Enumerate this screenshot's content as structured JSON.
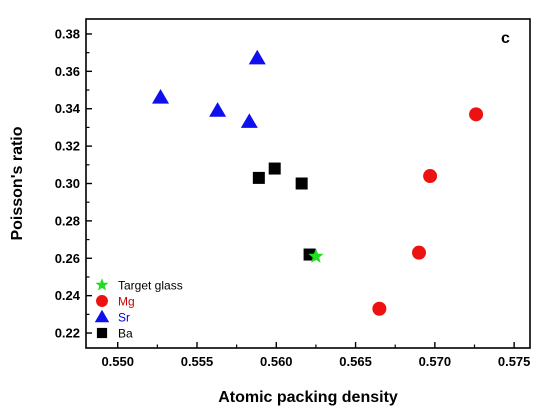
{
  "chart_data": {
    "type": "scatter",
    "panel_label": "c",
    "xlabel": "Atomic packing density",
    "ylabel": "Poisson's ratio",
    "xlim": [
      0.548,
      0.576
    ],
    "ylim": [
      0.212,
      0.388
    ],
    "x_ticks": [
      0.55,
      0.555,
      0.56,
      0.565,
      0.57,
      0.575
    ],
    "x_tick_labels": [
      "0.550",
      "0.555",
      "0.560",
      "0.565",
      "0.570",
      "0.575"
    ],
    "y_ticks": [
      0.22,
      0.24,
      0.26,
      0.28,
      0.3,
      0.32,
      0.34,
      0.36,
      0.38
    ],
    "y_tick_labels": [
      "0.22",
      "0.24",
      "0.26",
      "0.28",
      "0.30",
      "0.32",
      "0.34",
      "0.36",
      "0.38"
    ],
    "grid": false,
    "legend_position": "bottom-left",
    "series": [
      {
        "name": "Target glass",
        "marker": "star",
        "color": "#22dd22",
        "label_color": "#000000",
        "points": [
          [
            0.5625,
            0.261
          ]
        ]
      },
      {
        "name": "Mg",
        "marker": "circle",
        "color": "#ee1111",
        "label_color": "#cc0000",
        "points": [
          [
            0.5665,
            0.233
          ],
          [
            0.569,
            0.263
          ],
          [
            0.5697,
            0.304
          ],
          [
            0.5726,
            0.337
          ]
        ]
      },
      {
        "name": "Sr",
        "marker": "triangle",
        "color": "#1010ee",
        "label_color": "#0000cc",
        "points": [
          [
            0.5527,
            0.346
          ],
          [
            0.5563,
            0.339
          ],
          [
            0.5583,
            0.333
          ],
          [
            0.5588,
            0.367
          ]
        ]
      },
      {
        "name": "Ba",
        "marker": "square",
        "color": "#000000",
        "label_color": "#000000",
        "points": [
          [
            0.5589,
            0.303
          ],
          [
            0.5599,
            0.308
          ],
          [
            0.5616,
            0.3
          ],
          [
            0.5621,
            0.262
          ]
        ]
      }
    ]
  }
}
